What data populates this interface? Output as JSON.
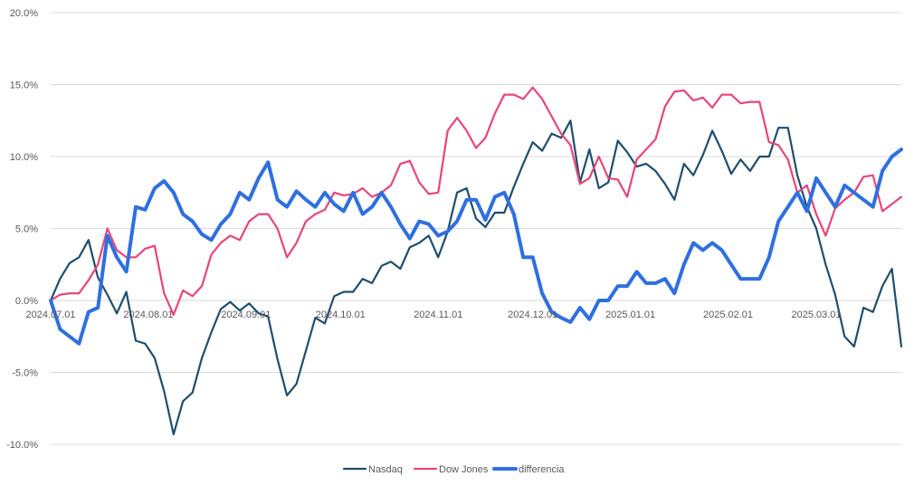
{
  "chart_data": {
    "type": "line",
    "title": "",
    "xlabel": "",
    "ylabel": "",
    "ylim": [
      -10,
      20
    ],
    "y_ticks": [
      "20.0%",
      "15.0%",
      "10.0%",
      "5.0%",
      "0.0%",
      "-5.0%",
      "-10.0%"
    ],
    "x_ticks": [
      "2024.07.01",
      "2024.08.01",
      "2024.09.01",
      "2024.10.01",
      "2024.11.01",
      "2024.12.01",
      "2025.01.01",
      "2025.02.01",
      "2025.03.01"
    ],
    "grid": "horizontal",
    "legend_position": "bottom",
    "colors": {
      "nasdaq": "#1f4e6e",
      "dowjones": "#e8457a",
      "differencia": "#2f6fe0",
      "grid": "#d9d9d9"
    },
    "series": [
      {
        "name": "Nasdaq",
        "x": [
          "2024.07.01",
          "2024.07.04",
          "2024.07.07",
          "2024.07.10",
          "2024.07.13",
          "2024.07.16",
          "2024.07.19",
          "2024.07.22",
          "2024.07.25",
          "2024.07.28",
          "2024.07.31",
          "2024.08.03",
          "2024.08.06",
          "2024.08.09",
          "2024.08.12",
          "2024.08.15",
          "2024.08.18",
          "2024.08.21",
          "2024.08.24",
          "2024.08.27",
          "2024.08.30",
          "2024.09.02",
          "2024.09.05",
          "2024.09.08",
          "2024.09.11",
          "2024.09.14",
          "2024.09.17",
          "2024.09.20",
          "2024.09.23",
          "2024.09.26",
          "2024.09.29",
          "2024.10.02",
          "2024.10.05",
          "2024.10.08",
          "2024.10.11",
          "2024.10.14",
          "2024.10.17",
          "2024.10.20",
          "2024.10.23",
          "2024.10.26",
          "2024.10.29",
          "2024.11.01",
          "2024.11.04",
          "2024.11.07",
          "2024.11.10",
          "2024.11.13",
          "2024.11.16",
          "2024.11.19",
          "2024.11.22",
          "2024.11.25",
          "2024.11.28",
          "2024.12.01",
          "2024.12.04",
          "2024.12.07",
          "2024.12.10",
          "2024.12.13",
          "2024.12.16",
          "2024.12.19",
          "2024.12.22",
          "2024.12.25",
          "2024.12.28",
          "2024.12.31",
          "2025.01.03",
          "2025.01.06",
          "2025.01.09",
          "2025.01.12",
          "2025.01.15",
          "2025.01.18",
          "2025.01.21",
          "2025.01.24",
          "2025.01.27",
          "2025.01.30",
          "2025.02.02",
          "2025.02.05",
          "2025.02.08",
          "2025.02.11",
          "2025.02.14",
          "2025.02.17",
          "2025.02.20",
          "2025.02.23",
          "2025.02.26",
          "2025.03.01",
          "2025.03.04",
          "2025.03.07",
          "2025.03.10",
          "2025.03.13",
          "2025.03.16",
          "2025.03.19",
          "2025.03.22",
          "2025.03.25",
          "2025.03.28"
        ],
        "values": [
          0.0,
          1.5,
          2.6,
          3.0,
          4.2,
          1.6,
          0.4,
          -0.9,
          0.6,
          -2.8,
          -3.0,
          -4.0,
          -6.3,
          -9.3,
          -7.0,
          -6.4,
          -4.0,
          -2.2,
          -0.6,
          -0.1,
          -0.7,
          -0.2,
          -0.9,
          -1.1,
          -4.1,
          -6.6,
          -5.8,
          -3.5,
          -1.2,
          -1.6,
          0.3,
          0.6,
          0.6,
          1.5,
          1.2,
          2.4,
          2.7,
          2.2,
          3.7,
          4.0,
          4.5,
          3.0,
          4.8,
          7.5,
          7.8,
          5.7,
          5.1,
          6.1,
          6.1,
          7.9,
          9.5,
          11.0,
          10.4,
          11.6,
          11.3,
          12.5,
          8.2,
          10.5,
          7.8,
          8.2,
          11.1,
          10.3,
          9.3,
          9.5,
          9.0,
          8.1,
          7.0,
          9.5,
          8.7,
          10.1,
          11.8,
          10.4,
          8.8,
          9.8,
          9.0,
          10.0,
          10.0,
          12.0,
          12.0,
          8.7,
          6.5,
          5.0,
          2.5,
          0.4,
          -2.5,
          -3.2,
          -0.5,
          -0.8,
          1.0,
          2.2,
          -3.2
        ]
      },
      {
        "name": "Dow Jones",
        "x": [
          "2024.07.01",
          "2024.07.04",
          "2024.07.07",
          "2024.07.10",
          "2024.07.13",
          "2024.07.16",
          "2024.07.19",
          "2024.07.22",
          "2024.07.25",
          "2024.07.28",
          "2024.07.31",
          "2024.08.03",
          "2024.08.06",
          "2024.08.09",
          "2024.08.12",
          "2024.08.15",
          "2024.08.18",
          "2024.08.21",
          "2024.08.24",
          "2024.08.27",
          "2024.08.30",
          "2024.09.02",
          "2024.09.05",
          "2024.09.08",
          "2024.09.11",
          "2024.09.14",
          "2024.09.17",
          "2024.09.20",
          "2024.09.23",
          "2024.09.26",
          "2024.09.29",
          "2024.10.02",
          "2024.10.05",
          "2024.10.08",
          "2024.10.11",
          "2024.10.14",
          "2024.10.17",
          "2024.10.20",
          "2024.10.23",
          "2024.10.26",
          "2024.10.29",
          "2024.11.01",
          "2024.11.04",
          "2024.11.07",
          "2024.11.10",
          "2024.11.13",
          "2024.11.16",
          "2024.11.19",
          "2024.11.22",
          "2024.11.25",
          "2024.11.28",
          "2024.12.01",
          "2024.12.04",
          "2024.12.07",
          "2024.12.10",
          "2024.12.13",
          "2024.12.16",
          "2024.12.19",
          "2024.12.22",
          "2024.12.25",
          "2024.12.28",
          "2024.12.31",
          "2025.01.03",
          "2025.01.06",
          "2025.01.09",
          "2025.01.12",
          "2025.01.15",
          "2025.01.18",
          "2025.01.21",
          "2025.01.24",
          "2025.01.27",
          "2025.01.30",
          "2025.02.02",
          "2025.02.05",
          "2025.02.08",
          "2025.02.11",
          "2025.02.14",
          "2025.02.17",
          "2025.02.20",
          "2025.02.23",
          "2025.02.26",
          "2025.03.01",
          "2025.03.04",
          "2025.03.07",
          "2025.03.10",
          "2025.03.13",
          "2025.03.16",
          "2025.03.19",
          "2025.03.22",
          "2025.03.25",
          "2025.03.28"
        ],
        "values": [
          0.0,
          0.4,
          0.5,
          0.5,
          1.4,
          2.5,
          5.0,
          3.5,
          3.0,
          3.0,
          3.6,
          3.8,
          0.5,
          -1.0,
          0.7,
          0.3,
          1.0,
          3.2,
          4.0,
          4.5,
          4.2,
          5.5,
          6.0,
          6.0,
          5.0,
          3.0,
          4.0,
          5.5,
          6.0,
          6.3,
          7.5,
          7.3,
          7.4,
          7.8,
          7.2,
          7.5,
          8.0,
          9.5,
          9.7,
          8.2,
          7.4,
          7.5,
          11.8,
          12.7,
          11.8,
          10.6,
          11.3,
          13.0,
          14.3,
          14.3,
          14.0,
          14.8,
          14.0,
          12.8,
          11.6,
          10.8,
          8.1,
          8.5,
          10.0,
          8.5,
          8.4,
          7.2,
          9.8,
          10.5,
          11.2,
          13.5,
          14.5,
          14.6,
          13.9,
          14.1,
          13.4,
          14.3,
          14.3,
          13.7,
          13.8,
          13.8,
          11.0,
          10.8,
          9.8,
          7.5,
          8.0,
          6.0,
          4.5,
          6.4,
          7.0,
          7.5,
          8.6,
          8.7,
          6.2,
          6.7,
          7.2
        ]
      },
      {
        "name": "differencia",
        "x": [
          "2024.07.01",
          "2024.07.04",
          "2024.07.07",
          "2024.07.10",
          "2024.07.13",
          "2024.07.16",
          "2024.07.19",
          "2024.07.22",
          "2024.07.25",
          "2024.07.28",
          "2024.07.31",
          "2024.08.03",
          "2024.08.06",
          "2024.08.09",
          "2024.08.12",
          "2024.08.15",
          "2024.08.18",
          "2024.08.21",
          "2024.08.24",
          "2024.08.27",
          "2024.08.30",
          "2024.09.02",
          "2024.09.05",
          "2024.09.08",
          "2024.09.11",
          "2024.09.14",
          "2024.09.17",
          "2024.09.20",
          "2024.09.23",
          "2024.09.26",
          "2024.09.29",
          "2024.10.02",
          "2024.10.05",
          "2024.10.08",
          "2024.10.11",
          "2024.10.14",
          "2024.10.17",
          "2024.10.20",
          "2024.10.23",
          "2024.10.26",
          "2024.10.29",
          "2024.11.01",
          "2024.11.04",
          "2024.11.07",
          "2024.11.10",
          "2024.11.13",
          "2024.11.16",
          "2024.11.19",
          "2024.11.22",
          "2024.11.25",
          "2024.11.28",
          "2024.12.01",
          "2024.12.04",
          "2024.12.07",
          "2024.12.10",
          "2024.12.13",
          "2024.12.16",
          "2024.12.19",
          "2024.12.22",
          "2024.12.25",
          "2024.12.28",
          "2024.12.31",
          "2025.01.03",
          "2025.01.06",
          "2025.01.09",
          "2025.01.12",
          "2025.01.15",
          "2025.01.18",
          "2025.01.21",
          "2025.01.24",
          "2025.01.27",
          "2025.01.30",
          "2025.02.02",
          "2025.02.05",
          "2025.02.08",
          "2025.02.11",
          "2025.02.14",
          "2025.02.17",
          "2025.02.20",
          "2025.02.23",
          "2025.02.26",
          "2025.03.01",
          "2025.03.04",
          "2025.03.07",
          "2025.03.10",
          "2025.03.13",
          "2025.03.16",
          "2025.03.19",
          "2025.03.22",
          "2025.03.25",
          "2025.03.28"
        ],
        "values": [
          0.0,
          -2.0,
          -2.5,
          -3.0,
          -0.8,
          -0.5,
          4.5,
          3.0,
          2.0,
          6.5,
          6.3,
          7.8,
          8.3,
          7.5,
          6.0,
          5.5,
          4.6,
          4.2,
          5.3,
          6.0,
          7.5,
          7.0,
          8.5,
          9.6,
          7.0,
          6.5,
          7.6,
          7.0,
          6.5,
          7.5,
          6.7,
          6.2,
          7.5,
          6.0,
          6.5,
          7.5,
          6.5,
          5.3,
          4.3,
          5.5,
          5.3,
          4.5,
          4.8,
          5.5,
          7.0,
          7.0,
          5.6,
          7.2,
          7.5,
          6.0,
          3.0,
          3.0,
          0.5,
          -0.8,
          -1.2,
          -1.5,
          -0.5,
          -1.3,
          0.0,
          0.0,
          1.0,
          1.0,
          2.0,
          1.2,
          1.2,
          1.5,
          0.5,
          2.5,
          4.0,
          3.5,
          4.0,
          3.5,
          2.5,
          1.5,
          1.5,
          1.5,
          3.0,
          5.5,
          6.5,
          7.5,
          6.2,
          8.5,
          7.5,
          6.5,
          8.0,
          7.5,
          7.0,
          6.5,
          9.0,
          10.0,
          10.5
        ]
      }
    ]
  }
}
